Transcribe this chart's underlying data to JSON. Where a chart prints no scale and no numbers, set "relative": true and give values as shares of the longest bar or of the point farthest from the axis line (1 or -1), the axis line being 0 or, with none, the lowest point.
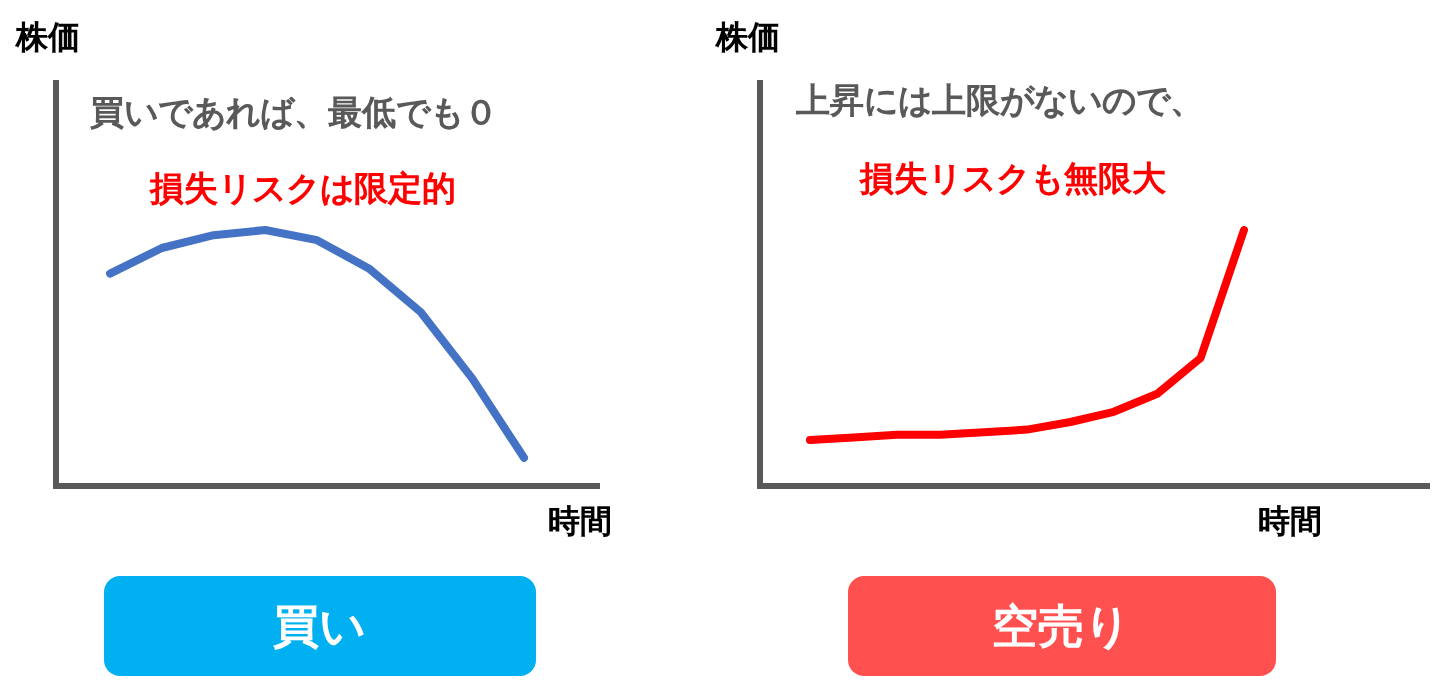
{
  "chart_data": [
    {
      "type": "line",
      "relative": true,
      "title": "買い",
      "ylabel": "株価",
      "xlabel": "時間",
      "annotations": [
        "買いであれば、最低でも０",
        "損失リスクは限定的"
      ],
      "categories": [
        null,
        null,
        null,
        null,
        null,
        null,
        null,
        null,
        null
      ],
      "series": [
        {
          "color": "#4472c4",
          "values": [
            0.83,
            0.93,
            0.98,
            1,
            0.96,
            0.85,
            0.68,
            0.42,
            0.11
          ]
        }
      ]
    },
    {
      "type": "line",
      "relative": true,
      "title": "空売り",
      "ylabel": "株価",
      "xlabel": "時間",
      "annotations": [
        "上昇には上限がないので、",
        "損失リスクも無限大"
      ],
      "categories": [
        null,
        null,
        null,
        null,
        null,
        null,
        null,
        null,
        null,
        null,
        null
      ],
      "series": [
        {
          "color": "#ff0000",
          "values": [
            0.18,
            0.19,
            0.2,
            0.2,
            0.21,
            0.22,
            0.25,
            0.29,
            0.36,
            0.5,
            1
          ]
        }
      ]
    }
  ]
}
